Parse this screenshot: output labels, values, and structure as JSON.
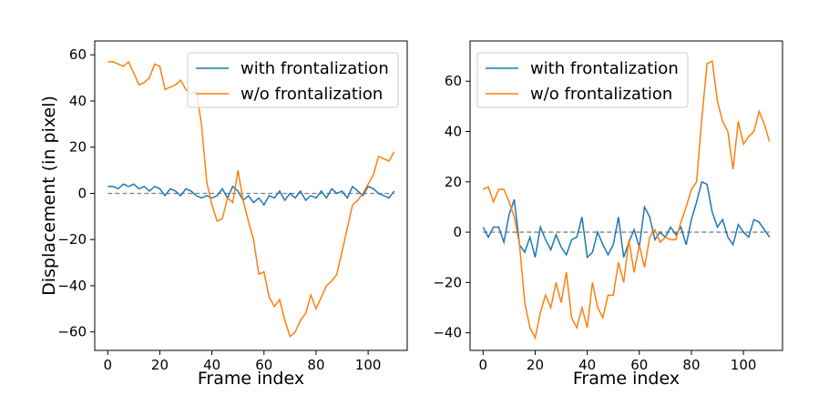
{
  "chart_data": [
    {
      "type": "line",
      "xlabel": "Frame index",
      "ylabel": "Displacement (in pixel)",
      "x": [
        0,
        2,
        4,
        6,
        8,
        10,
        12,
        14,
        16,
        18,
        20,
        22,
        24,
        26,
        28,
        30,
        32,
        34,
        36,
        38,
        40,
        42,
        44,
        46,
        48,
        50,
        52,
        54,
        56,
        58,
        60,
        62,
        64,
        66,
        68,
        70,
        72,
        74,
        76,
        78,
        80,
        82,
        84,
        86,
        88,
        90,
        92,
        94,
        96,
        98,
        100,
        102,
        104,
        106,
        108,
        110
      ],
      "series": [
        {
          "name": "with frontalization",
          "color": "#1f77b4",
          "values": [
            3,
            3,
            2,
            4,
            3,
            4,
            2,
            3,
            1,
            3,
            2,
            -1,
            2,
            1,
            -1,
            2,
            1,
            -1,
            -2,
            -1,
            -2,
            -1,
            2,
            -2,
            3,
            1,
            -3,
            -1,
            -4,
            -2,
            -5,
            -1,
            -2,
            1,
            -3,
            0,
            -2,
            1,
            -3,
            -1,
            -2,
            1,
            -2,
            2,
            0,
            1,
            -2,
            3,
            1,
            -1,
            3,
            2,
            0,
            -1,
            -2,
            1
          ]
        },
        {
          "name": "w/o frontalization",
          "color": "#ff7f0e",
          "values": [
            57,
            57,
            56,
            55,
            57,
            52,
            47,
            48,
            50,
            56,
            55,
            45,
            46,
            47,
            49,
            45,
            43,
            44,
            30,
            5,
            -5,
            -12,
            -11,
            -2,
            -4,
            10,
            -3,
            -12,
            -20,
            -35,
            -34,
            -45,
            -49,
            -46,
            -55,
            -62,
            -60,
            -55,
            -52,
            -44,
            -50,
            -45,
            -40,
            -38,
            -35,
            -25,
            -15,
            -5,
            -3,
            0,
            4,
            8,
            16,
            15,
            14,
            18
          ]
        }
      ],
      "reference_line": {
        "value": 0,
        "color": "#808080"
      },
      "xlim": [
        -5,
        115
      ],
      "ylim": [
        -68,
        66
      ],
      "xticks": [
        0,
        20,
        40,
        60,
        80,
        100
      ],
      "yticks": [
        {
          "value": -60,
          "label": "−60"
        },
        {
          "value": -40,
          "label": "−40"
        },
        {
          "value": -20,
          "label": "−20"
        },
        0,
        20,
        40,
        60
      ],
      "legend": "upper right"
    },
    {
      "type": "line",
      "xlabel": "Frame index",
      "x": [
        0,
        2,
        4,
        6,
        8,
        10,
        12,
        14,
        16,
        18,
        20,
        22,
        24,
        26,
        28,
        30,
        32,
        34,
        36,
        38,
        40,
        42,
        44,
        46,
        48,
        50,
        52,
        54,
        56,
        58,
        60,
        62,
        64,
        66,
        68,
        70,
        72,
        74,
        76,
        78,
        80,
        82,
        84,
        86,
        88,
        90,
        92,
        94,
        96,
        98,
        100,
        102,
        104,
        106,
        108,
        110
      ],
      "series": [
        {
          "name": "with frontalization",
          "color": "#1f77b4",
          "values": [
            2,
            -2,
            2,
            2,
            -4,
            7,
            13,
            -5,
            -8,
            -2,
            -10,
            2,
            -3,
            -7,
            -1,
            -6,
            -9,
            -3,
            -2,
            6,
            -10,
            -8,
            0,
            -5,
            -9,
            -5,
            6,
            -10,
            -4,
            1,
            -6,
            10,
            6,
            -3,
            0,
            -2,
            2,
            -1,
            2,
            -5,
            5,
            12,
            20,
            19,
            8,
            2,
            5,
            -2,
            -5,
            3,
            0,
            -2,
            5,
            4,
            1,
            -2
          ]
        },
        {
          "name": "w/o frontalization",
          "color": "#ff7f0e",
          "values": [
            17,
            18,
            12,
            17,
            17,
            12,
            6,
            -5,
            -28,
            -38,
            -42,
            -32,
            -25,
            -30,
            -20,
            -28,
            -16,
            -34,
            -38,
            -30,
            -38,
            -20,
            -30,
            -34,
            -25,
            -25,
            -12,
            -20,
            -3,
            -16,
            -5,
            -14,
            -2,
            1,
            -4,
            -2,
            -3,
            -3,
            4,
            10,
            17,
            20,
            45,
            67,
            68,
            52,
            44,
            40,
            25,
            44,
            35,
            38,
            40,
            48,
            43,
            36
          ]
        }
      ],
      "reference_line": {
        "value": 0,
        "color": "#808080"
      },
      "xlim": [
        -5,
        115
      ],
      "ylim": [
        -47,
        76
      ],
      "xticks": [
        0,
        20,
        40,
        60,
        80,
        100
      ],
      "yticks": [
        {
          "value": -40,
          "label": "−40"
        },
        {
          "value": -20,
          "label": "−20"
        },
        0,
        20,
        40,
        60
      ],
      "legend": "upper left"
    }
  ]
}
